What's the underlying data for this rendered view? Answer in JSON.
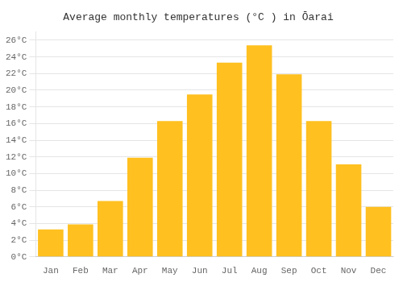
{
  "chart_data": {
    "type": "bar",
    "title": "Average monthly temperatures (°C ) in Ōarai",
    "categories": [
      "Jan",
      "Feb",
      "Mar",
      "Apr",
      "May",
      "Jun",
      "Jul",
      "Aug",
      "Sep",
      "Oct",
      "Nov",
      "Dec"
    ],
    "values": [
      3.3,
      3.9,
      6.7,
      11.9,
      16.3,
      19.5,
      23.3,
      25.4,
      21.9,
      16.3,
      11.1,
      6.0
    ],
    "color": "#FFC020",
    "ylim": [
      0,
      27
    ],
    "yticks": [
      {
        "value": 0,
        "label": "0°C"
      },
      {
        "value": 2,
        "label": "2°C"
      },
      {
        "value": 4,
        "label": "4°C"
      },
      {
        "value": 6,
        "label": "6°C"
      },
      {
        "value": 8,
        "label": "8°C"
      },
      {
        "value": 10,
        "label": "10°C"
      },
      {
        "value": 12,
        "label": "12°C"
      },
      {
        "value": 14,
        "label": "14°C"
      },
      {
        "value": 16,
        "label": "16°C"
      },
      {
        "value": 18,
        "label": "18°C"
      },
      {
        "value": 20,
        "label": "20°C"
      },
      {
        "value": 22,
        "label": "22°C"
      },
      {
        "value": 24,
        "label": "24°C"
      },
      {
        "value": 26,
        "label": "26°C"
      }
    ],
    "grid": true
  }
}
